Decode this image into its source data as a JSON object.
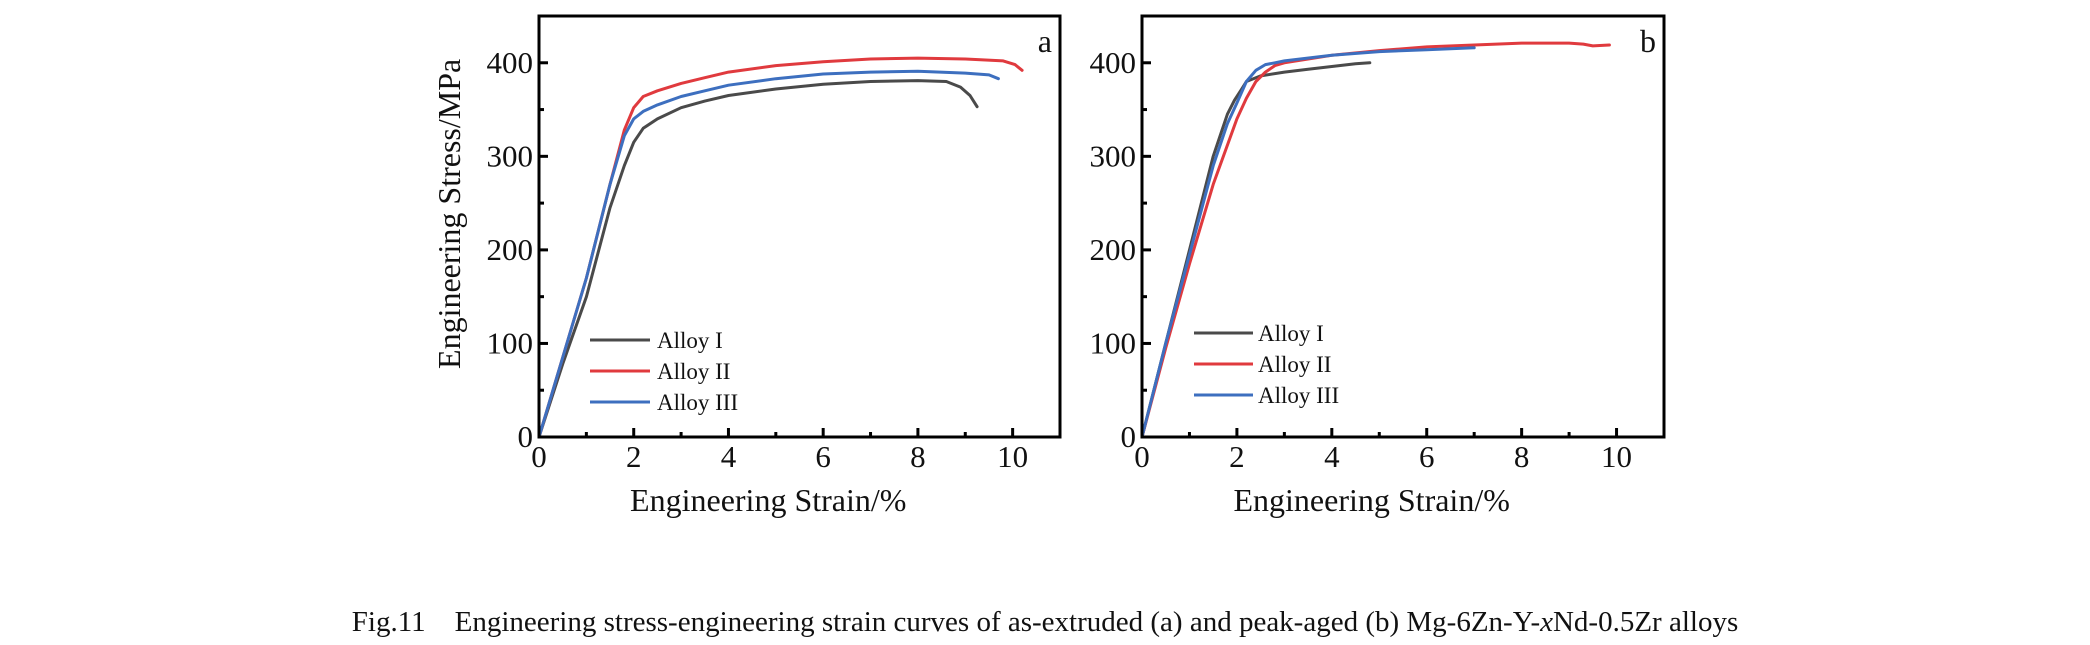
{
  "figure": {
    "caption": {
      "fig_number": "Fig.11",
      "text_before_italic": "Engineering stress-engineering strain curves of as-extruded (a) and peak-aged (b) Mg-6Zn-Y-",
      "italic": "x",
      "text_after_italic": "Nd-0.5Zr alloys"
    }
  },
  "chart_data": [
    {
      "type": "line",
      "panel_label": "a",
      "title": "",
      "xlabel": "Engineering Strain/%",
      "ylabel": "Engineering Stress/MPa",
      "xlim": [
        0,
        11
      ],
      "ylim": [
        0,
        450
      ],
      "xticks": [
        0,
        2,
        4,
        6,
        8,
        10
      ],
      "xtick_labels": [
        "0",
        "2",
        "4",
        "6",
        "8",
        "10"
      ],
      "x_minor_ticks": [
        1,
        3,
        5,
        7,
        9
      ],
      "yticks": [
        0,
        100,
        200,
        300,
        400
      ],
      "ytick_labels": [
        "0",
        "100",
        "200",
        "300",
        "400"
      ],
      "y_minor_ticks": [
        50,
        150,
        250,
        350
      ],
      "grid": false,
      "legend_position": "bottom-left",
      "series": [
        {
          "name": "Alloy I",
          "color": "#4a4a4a",
          "x": [
            0,
            0.5,
            1,
            1.5,
            1.8,
            2,
            2.2,
            2.5,
            3,
            3.5,
            4,
            5,
            6,
            7,
            8,
            8.6,
            8.9,
            9.1,
            9.25
          ],
          "y": [
            0,
            78,
            150,
            245,
            290,
            315,
            330,
            340,
            352,
            359,
            365,
            372,
            377,
            380,
            381,
            380,
            374,
            365,
            353
          ]
        },
        {
          "name": "Alloy II",
          "color": "#e03a3e",
          "x": [
            0,
            0.5,
            1,
            1.5,
            1.8,
            2,
            2.2,
            2.5,
            3,
            3.5,
            4,
            5,
            6,
            7,
            8,
            9,
            9.8,
            10.05,
            10.2
          ],
          "y": [
            0,
            85,
            170,
            270,
            328,
            352,
            364,
            370,
            378,
            384,
            390,
            397,
            401,
            404,
            405,
            404,
            402,
            398,
            392
          ]
        },
        {
          "name": "Alloy III",
          "color": "#3d6fbf",
          "x": [
            0,
            0.5,
            1,
            1.5,
            1.8,
            2,
            2.2,
            2.5,
            3,
            3.5,
            4,
            5,
            6,
            7,
            8,
            9,
            9.5,
            9.7
          ],
          "y": [
            0,
            85,
            170,
            270,
            322,
            340,
            348,
            355,
            364,
            370,
            376,
            383,
            388,
            390,
            391,
            389,
            387,
            383
          ]
        }
      ]
    },
    {
      "type": "line",
      "panel_label": "b",
      "title": "",
      "xlabel": "Engineering Strain/%",
      "ylabel": "",
      "xlim": [
        0,
        11
      ],
      "ylim": [
        0,
        450
      ],
      "xticks": [
        0,
        2,
        4,
        6,
        8,
        10
      ],
      "xtick_labels": [
        "0",
        "2",
        "4",
        "6",
        "8",
        "10"
      ],
      "x_minor_ticks": [
        1,
        3,
        5,
        7,
        9
      ],
      "yticks": [
        0,
        100,
        200,
        300,
        400
      ],
      "ytick_labels": [
        "0",
        "100",
        "200",
        "300",
        "400"
      ],
      "y_minor_ticks": [
        50,
        150,
        250,
        350
      ],
      "grid": false,
      "legend_position": "bottom-left",
      "series": [
        {
          "name": "Alloy I",
          "color": "#4a4a4a",
          "x": [
            0,
            0.5,
            1,
            1.5,
            1.8,
            1.95,
            2.1,
            2.2,
            2.5,
            3,
            3.5,
            4,
            4.5,
            4.8
          ],
          "y": [
            0,
            100,
            200,
            300,
            345,
            360,
            372,
            380,
            386,
            390,
            393,
            396,
            399,
            400
          ]
        },
        {
          "name": "Alloy II",
          "color": "#e03a3e",
          "x": [
            0,
            0.5,
            1,
            1.5,
            2,
            2.2,
            2.4,
            2.6,
            2.8,
            3,
            4,
            5,
            6,
            7,
            8,
            9,
            9.3,
            9.5,
            9.85
          ],
          "y": [
            0,
            95,
            185,
            270,
            340,
            362,
            380,
            390,
            397,
            400,
            408,
            413,
            417,
            419,
            421,
            421,
            420,
            418,
            419
          ]
        },
        {
          "name": "Alloy III",
          "color": "#3d6fbf",
          "x": [
            0,
            0.5,
            1,
            1.5,
            1.8,
            2,
            2.2,
            2.4,
            2.6,
            2.8,
            3,
            4,
            5,
            6,
            7
          ],
          "y": [
            0,
            100,
            195,
            290,
            335,
            357,
            380,
            392,
            398,
            400,
            402,
            408,
            412,
            414,
            416
          ]
        }
      ]
    }
  ]
}
